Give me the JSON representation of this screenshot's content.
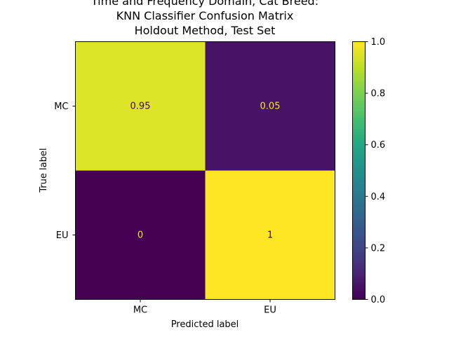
{
  "chart_data": {
    "type": "heatmap",
    "title_lines": [
      "Time and Frequency Domain, Cat Breed:",
      "KNN Classifier Confusion Matrix",
      "Holdout Method, Test Set"
    ],
    "xlabel": "Predicted label",
    "ylabel": "True label",
    "x_categories": [
      "MC",
      "EU"
    ],
    "y_categories": [
      "MC",
      "EU"
    ],
    "values": [
      [
        0.95,
        0.05
      ],
      [
        0,
        1
      ]
    ],
    "cell_labels": [
      [
        "0.95",
        "0.05"
      ],
      [
        "0",
        "1"
      ]
    ],
    "colorbar": {
      "colormap": "viridis",
      "range": [
        0.0,
        1.0
      ],
      "ticks": [
        0.0,
        0.2,
        0.4,
        0.6,
        0.8,
        1.0
      ],
      "tick_labels": [
        "0.0",
        "0.2",
        "0.4",
        "0.6",
        "0.8",
        "1.0"
      ]
    },
    "text_colors": {
      "on_dark": "#fde725",
      "on_light": "#440154"
    }
  }
}
